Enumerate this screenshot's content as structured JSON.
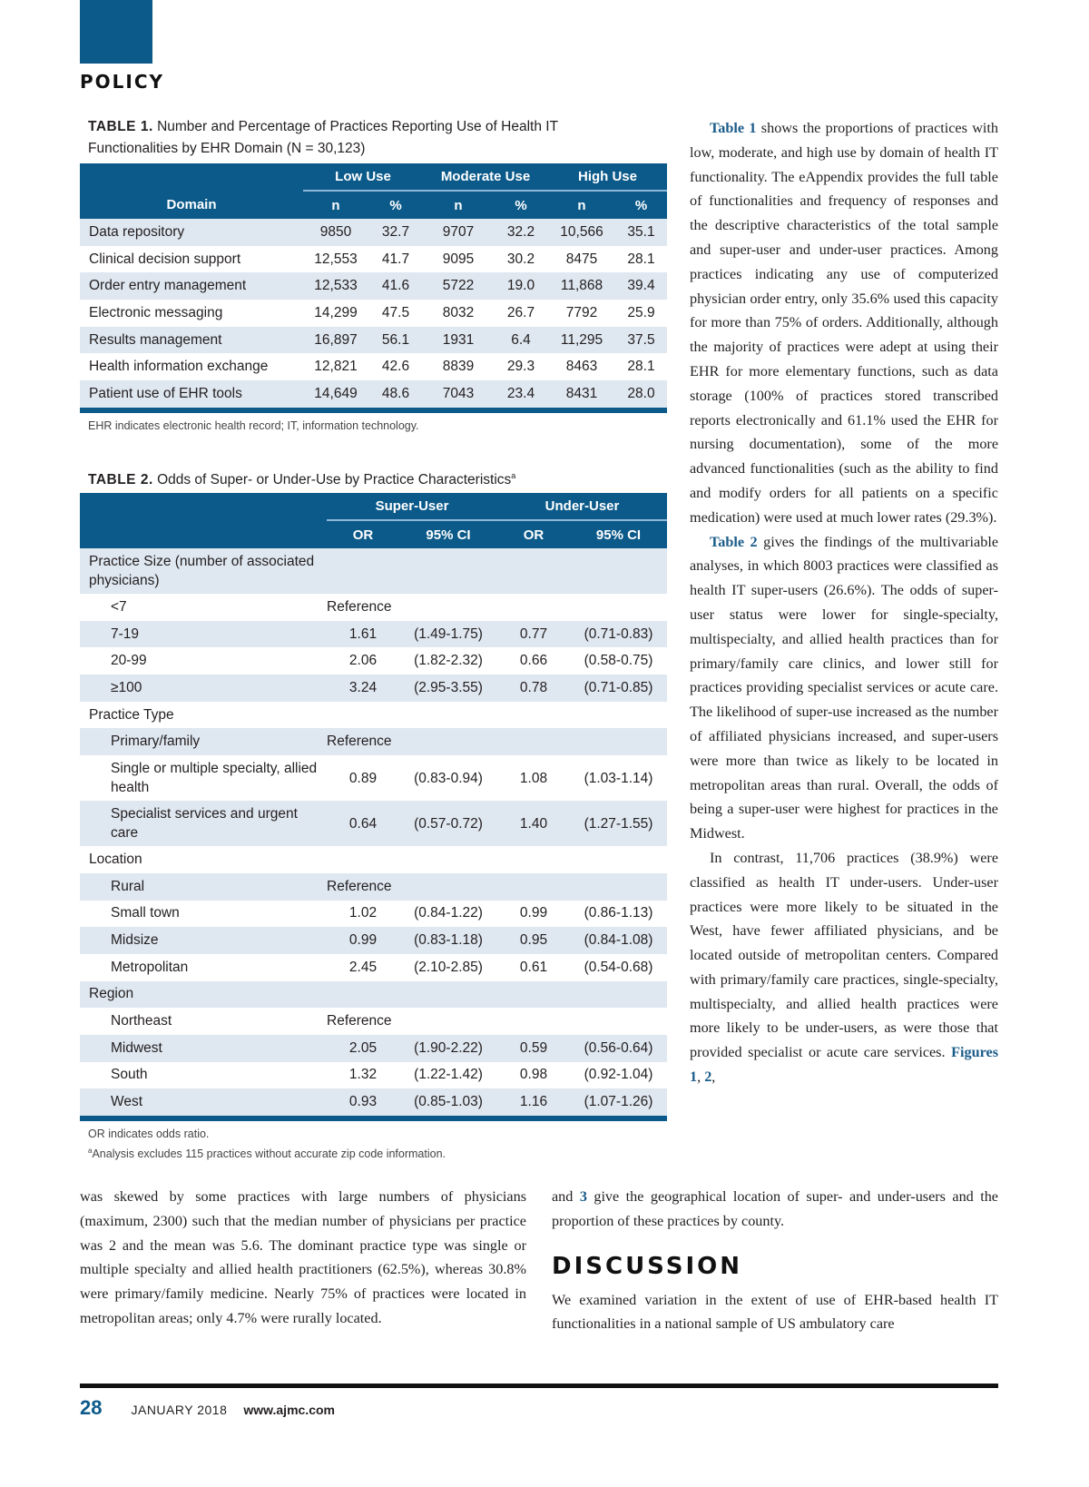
{
  "section_label": "POLICY",
  "colors": {
    "accent": "#0b5a8a",
    "stripe": "#dfe7f0",
    "link": "#1a5c8a"
  },
  "table1": {
    "label": "TABLE 1.",
    "title": "Number and Percentage of Practices Reporting Use of Health IT Functionalities by EHR Domain (N = 30,123)",
    "groups": [
      "Low Use",
      "Moderate Use",
      "High Use"
    ],
    "columns": [
      "Domain",
      "n",
      "%",
      "n",
      "%",
      "n",
      "%"
    ],
    "rows": [
      [
        "Data repository",
        "9850",
        "32.7",
        "9707",
        "32.2",
        "10,566",
        "35.1"
      ],
      [
        "Clinical decision support",
        "12,553",
        "41.7",
        "9095",
        "30.2",
        "8475",
        "28.1"
      ],
      [
        "Order entry management",
        "12,533",
        "41.6",
        "5722",
        "19.0",
        "11,868",
        "39.4"
      ],
      [
        "Electronic messaging",
        "14,299",
        "47.5",
        "8032",
        "26.7",
        "7792",
        "25.9"
      ],
      [
        "Results management",
        "16,897",
        "56.1",
        "1931",
        "6.4",
        "11,295",
        "37.5"
      ],
      [
        "Health information exchange",
        "12,821",
        "42.6",
        "8839",
        "29.3",
        "8463",
        "28.1"
      ],
      [
        "Patient use of EHR tools",
        "14,649",
        "48.6",
        "7043",
        "23.4",
        "8431",
        "28.0"
      ]
    ],
    "note": "EHR indicates electronic health record; IT, information technology."
  },
  "table2": {
    "label": "TABLE 2.",
    "title": "Odds of Super- or Under-Use by Practice Characteristics",
    "title_sup": "a",
    "groups": [
      "Super-User",
      "Under-User"
    ],
    "columns": [
      "OR",
      "95% CI",
      "OR",
      "95% CI"
    ],
    "rows": [
      {
        "label": "Practice Size (number of associated physicians)",
        "cells": [
          "",
          "",
          "",
          ""
        ]
      },
      {
        "label": "<7",
        "cells": [
          "Reference",
          "",
          "",
          ""
        ]
      },
      {
        "label": "7-19",
        "cells": [
          "1.61",
          "(1.49-1.75)",
          "0.77",
          "(0.71-0.83)"
        ]
      },
      {
        "label": "20-99",
        "cells": [
          "2.06",
          "(1.82-2.32)",
          "0.66",
          "(0.58-0.75)"
        ]
      },
      {
        "label": "≥100",
        "cells": [
          "3.24",
          "(2.95-3.55)",
          "0.78",
          "(0.71-0.85)"
        ]
      },
      {
        "label": "Practice Type",
        "cells": [
          "",
          "",
          "",
          ""
        ]
      },
      {
        "label": "Primary/family",
        "cells": [
          "Reference",
          "",
          "",
          ""
        ]
      },
      {
        "label": "Single or multiple specialty, allied health",
        "cells": [
          "0.89",
          "(0.83-0.94)",
          "1.08",
          "(1.03-1.14)"
        ]
      },
      {
        "label": "Specialist services and urgent care",
        "cells": [
          "0.64",
          "(0.57-0.72)",
          "1.40",
          "(1.27-1.55)"
        ]
      },
      {
        "label": "Location",
        "cells": [
          "",
          "",
          "",
          ""
        ]
      },
      {
        "label": "Rural",
        "cells": [
          "Reference",
          "",
          "",
          ""
        ]
      },
      {
        "label": "Small town",
        "cells": [
          "1.02",
          "(0.84-1.22)",
          "0.99",
          "(0.86-1.13)"
        ]
      },
      {
        "label": "Midsize",
        "cells": [
          "0.99",
          "(0.83-1.18)",
          "0.95",
          "(0.84-1.08)"
        ]
      },
      {
        "label": "Metropolitan",
        "cells": [
          "2.45",
          "(2.10-2.85)",
          "0.61",
          "(0.54-0.68)"
        ]
      },
      {
        "label": "Region",
        "cells": [
          "",
          "",
          "",
          ""
        ]
      },
      {
        "label": "Northeast",
        "cells": [
          "Reference",
          "",
          "",
          ""
        ]
      },
      {
        "label": "Midwest",
        "cells": [
          "2.05",
          "(1.90-2.22)",
          "0.59",
          "(0.56-0.64)"
        ]
      },
      {
        "label": "South",
        "cells": [
          "1.32",
          "(1.22-1.42)",
          "0.98",
          "(0.92-1.04)"
        ]
      },
      {
        "label": "West",
        "cells": [
          "0.93",
          "(0.85-1.03)",
          "1.16",
          "(1.07-1.26)"
        ]
      }
    ],
    "notes": [
      "OR indicates odds ratio.",
      "Analysis excludes 115 practices without accurate zip code information."
    ],
    "note_sup": "a"
  },
  "right_column": {
    "p1_ref": "Table 1",
    "p1": " shows the proportions of practices with low, moderate, and high use by domain of health IT functionality. The eAppendix provides the full table of functionalities and frequency of responses and the descriptive characteristics of the total sample and super-user and under-user practices. Among practices indicating any use of computerized physician order entry, only 35.6% used this capacity for more than 75% of orders. Additionally, although the majority of practices were adept at using their EHR for more elementary functions, such as data storage (100% of practices stored transcribed reports electronically and 61.1% used the EHR for nursing documentation), some of the more advanced functionalities (such as the ability to find and modify orders for all patients on a specific medication) were used at much lower rates (29.3%).",
    "p2_ref": "Table 2",
    "p2": " gives the findings of the multivariable analyses, in which 8003 practices were classified as health IT super-users (26.6%). The odds of super-user status were lower for single-specialty, multispecialty, and allied health practices than for primary/family care clinics, and lower still for practices providing specialist services or acute care. The likelihood of super-use increased as the number of affiliated physicians increased, and super-users were more than twice as likely to be located in metropolitan areas than rural. Overall, the odds of being a super-user were highest for practices in the Midwest.",
    "p3": "In contrast, 11,706 practices (38.9%) were classified as health IT under-users. Under-user practices were more likely to be situated in the West, have fewer affiliated physicians, and be located outside of metropolitan centers. Compared with primary/family care practices, single-specialty, multispecialty, and allied health practices were more likely to be under-users, as were those that provided specialist or acute care services. ",
    "p3_ref1": "Figures 1",
    "p3_sep1": ", ",
    "p3_ref2": "2",
    "p3_sep2": ","
  },
  "bottom_left": {
    "text": "was skewed by some practices with large numbers of physicians (maximum, 2300) such that the median number of physicians per practice was 2 and the mean was 5.6. The dominant practice type was single or multiple specialty and allied health practitioners (62.5%), whereas 30.8% were primary/family medicine. Nearly 75% of practices were located in metropolitan areas; only 4.7% were rurally located."
  },
  "bottom_right": {
    "lead": "and ",
    "ref3": "3",
    "cont": " give the geographical location of super- and under-users and the proportion of these practices by county.",
    "heading": "DISCUSSION",
    "text": "We examined variation in the extent of use of EHR-based health IT functionalities in a national sample of US ambulatory care"
  },
  "footer": {
    "page": "28",
    "month": "JANUARY 2018",
    "url": "www.ajmc.com"
  }
}
